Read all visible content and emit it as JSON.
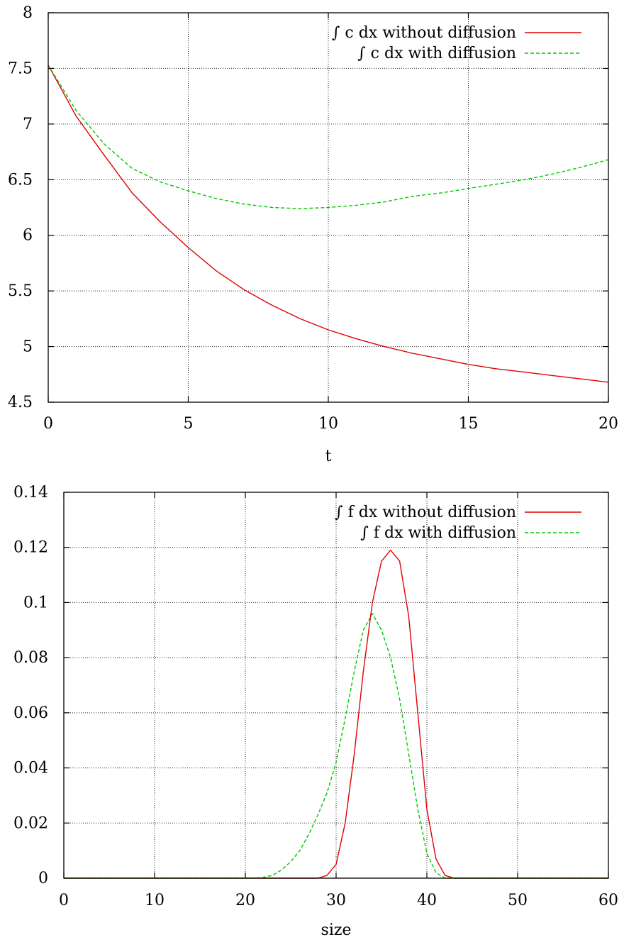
{
  "chart_data": [
    {
      "type": "line",
      "xlabel": "t",
      "ylabel": "",
      "xlim": [
        0,
        20
      ],
      "ylim": [
        4.5,
        8
      ],
      "xticks": [
        "0",
        "5",
        "10",
        "15",
        "20"
      ],
      "yticks": [
        "4.5",
        "5",
        "5.5",
        "6",
        "6.5",
        "7",
        "7.5",
        "8"
      ],
      "grid": true,
      "legend_position": "top-right",
      "series": [
        {
          "name": "∫ c dx without diffusion",
          "color": "#e00000",
          "style": "solid",
          "x": [
            0,
            1,
            2,
            3,
            4,
            5,
            6,
            7,
            8,
            9,
            10,
            11,
            12,
            13,
            14,
            15,
            16,
            17,
            18,
            19,
            20
          ],
          "y": [
            7.53,
            7.07,
            6.72,
            6.38,
            6.12,
            5.89,
            5.68,
            5.51,
            5.37,
            5.25,
            5.15,
            5.07,
            5.0,
            4.94,
            4.89,
            4.84,
            4.8,
            4.77,
            4.74,
            4.71,
            4.68
          ]
        },
        {
          "name": "∫ c dx with diffusion",
          "color": "#00c800",
          "style": "dashed",
          "x": [
            0,
            1,
            2,
            3,
            4,
            5,
            6,
            7,
            8,
            9,
            10,
            11,
            12,
            13,
            14,
            15,
            16,
            17,
            18,
            19,
            20
          ],
          "y": [
            7.53,
            7.12,
            6.82,
            6.6,
            6.48,
            6.4,
            6.33,
            6.28,
            6.25,
            6.24,
            6.25,
            6.27,
            6.3,
            6.35,
            6.38,
            6.42,
            6.46,
            6.5,
            6.55,
            6.61,
            6.68
          ]
        }
      ]
    },
    {
      "type": "line",
      "xlabel": "size",
      "ylabel": "",
      "xlim": [
        0,
        60
      ],
      "ylim": [
        0,
        0.14
      ],
      "xticks": [
        "0",
        "10",
        "20",
        "30",
        "40",
        "50",
        "60"
      ],
      "yticks": [
        "0",
        "0.02",
        "0.04",
        "0.06",
        "0.08",
        "0.1",
        "0.12",
        "0.14"
      ],
      "grid": true,
      "legend_position": "top-right",
      "series": [
        {
          "name": "∫ f dx without diffusion",
          "color": "#e00000",
          "style": "solid",
          "x": [
            0,
            28,
            29,
            30,
            31,
            32,
            33,
            34,
            35,
            36,
            37,
            38,
            39,
            40,
            41,
            42,
            43,
            60
          ],
          "y": [
            0,
            0,
            0.001,
            0.005,
            0.02,
            0.045,
            0.075,
            0.1,
            0.115,
            0.119,
            0.115,
            0.095,
            0.06,
            0.025,
            0.007,
            0.001,
            0,
            0
          ]
        },
        {
          "name": "∫ f dx with diffusion",
          "color": "#00c800",
          "style": "dashed",
          "x": [
            0,
            21,
            22,
            23,
            24,
            25,
            26,
            27,
            28,
            29,
            30,
            31,
            32,
            33,
            34,
            35,
            36,
            37,
            38,
            39,
            40,
            41,
            42,
            60
          ],
          "y": [
            0,
            0,
            0.0003,
            0.001,
            0.003,
            0.006,
            0.01,
            0.016,
            0.023,
            0.031,
            0.042,
            0.058,
            0.075,
            0.09,
            0.096,
            0.09,
            0.08,
            0.065,
            0.045,
            0.025,
            0.009,
            0.002,
            0,
            0
          ]
        }
      ]
    }
  ]
}
